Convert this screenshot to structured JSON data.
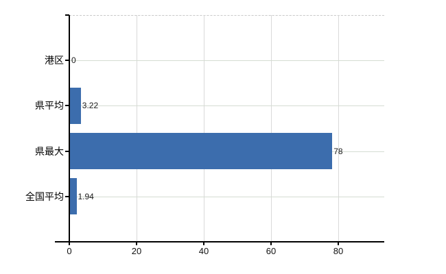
{
  "chart_data": {
    "type": "bar",
    "orientation": "horizontal",
    "title": "",
    "categories": [
      "港区",
      "県平均",
      "県最大",
      "全国平均"
    ],
    "values": [
      0,
      3.22,
      78,
      1.94
    ],
    "value_labels": [
      "0",
      "3.22",
      "78",
      "1.94"
    ],
    "x_ticks": [
      0,
      20,
      40,
      60,
      80
    ],
    "x_tick_labels": [
      "0",
      "20",
      "40",
      "60",
      "80"
    ],
    "xlim": [
      0,
      93.7
    ],
    "grid": "on",
    "legend": "none",
    "colors": {
      "bar": "#3c6dad",
      "vertical_gridline": "#d9d9d9",
      "category_gridline": "#d5dcd2",
      "axis": "#000000",
      "top_border_dashed": "#c9c9c9",
      "background": "#ffffff",
      "text": "#000000"
    }
  }
}
